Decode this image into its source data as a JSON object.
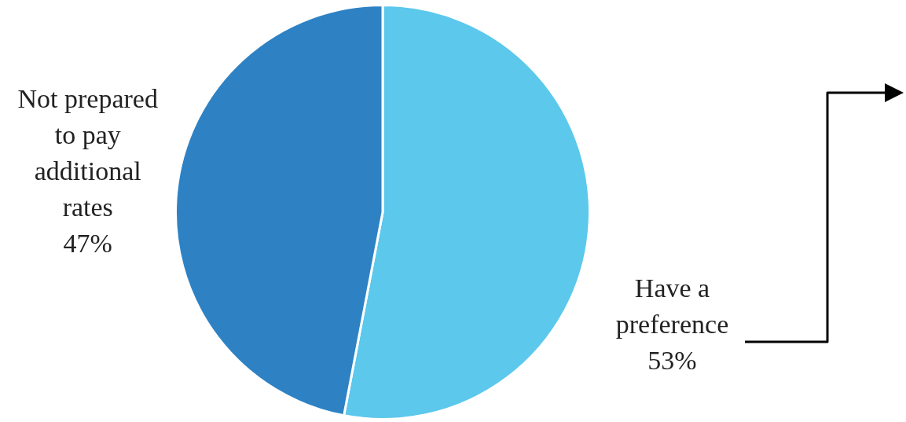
{
  "chart_data": {
    "type": "pie",
    "categories": [
      "Have a preference",
      "Not prepared to pay additional rates"
    ],
    "values": [
      53,
      47
    ],
    "colors": [
      "#5bc8ec",
      "#2e82c4"
    ],
    "value_labels": [
      "53%",
      "47%"
    ],
    "legend": false
  }
}
